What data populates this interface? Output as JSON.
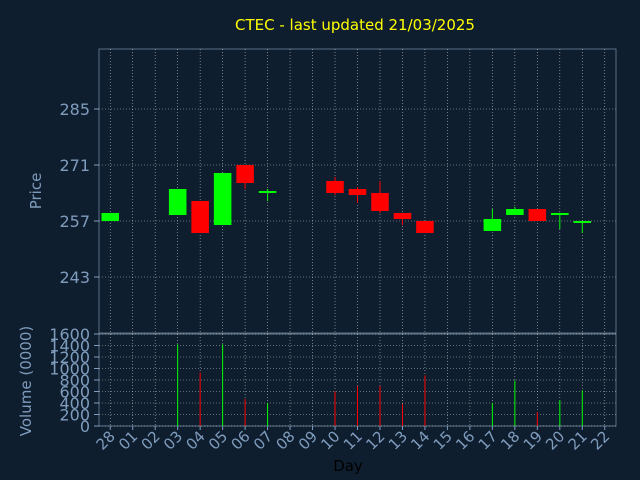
{
  "chart_data": {
    "type": "candlestick",
    "title": "CTEC - last updated 21/03/2025",
    "ylabel": "Price",
    "volume_ylabel": "Volume (0000)",
    "xlabel": "Day",
    "ylim": [
      229,
      300
    ],
    "yticks": [
      243,
      257,
      271,
      285
    ],
    "volume_ylim": [
      0,
      1600
    ],
    "volume_yticks": [
      0,
      200,
      400,
      600,
      800,
      1000,
      1200,
      1400,
      1600
    ],
    "grid": true,
    "colors": {
      "background": "#0f1e2e",
      "up": "#00ff00",
      "down": "#ff0000",
      "title": "#ffff00",
      "axis_text": "#7f9cbd",
      "xlabel": "#000000",
      "grid": "#ffffff"
    },
    "days": [
      "28",
      "01",
      "02",
      "03",
      "04",
      "05",
      "06",
      "07",
      "08",
      "09",
      "10",
      "11",
      "12",
      "13",
      "14",
      "15",
      "16",
      "17",
      "18",
      "19",
      "20",
      "21",
      "22"
    ],
    "candles": [
      {
        "day": "28",
        "open": 257,
        "high": 259,
        "low": 257,
        "close": 259,
        "volume": 0
      },
      {
        "day": "03",
        "open": 258.5,
        "high": 265,
        "low": 258.5,
        "close": 265,
        "volume": 1420
      },
      {
        "day": "04",
        "open": 262,
        "high": 262,
        "low": 254,
        "close": 254,
        "volume": 930
      },
      {
        "day": "05",
        "open": 256,
        "high": 269,
        "low": 256,
        "close": 269,
        "volume": 1420
      },
      {
        "day": "06",
        "open": 271,
        "high": 271,
        "low": 265,
        "close": 266.5,
        "volume": 470
      },
      {
        "day": "07",
        "open": 264,
        "high": 265,
        "low": 262,
        "close": 264.5,
        "volume": 400
      },
      {
        "day": "10",
        "open": 267,
        "high": 268,
        "low": 263.5,
        "close": 264,
        "volume": 600
      },
      {
        "day": "11",
        "open": 265,
        "high": 265.5,
        "low": 261.5,
        "close": 263.5,
        "volume": 700
      },
      {
        "day": "12",
        "open": 264,
        "high": 267,
        "low": 259,
        "close": 259.5,
        "volume": 700
      },
      {
        "day": "13",
        "open": 259,
        "high": 259,
        "low": 256,
        "close": 257.5,
        "volume": 380
      },
      {
        "day": "14",
        "open": 257,
        "high": 257,
        "low": 254,
        "close": 254,
        "volume": 880
      },
      {
        "day": "17",
        "open": 254.5,
        "high": 260,
        "low": 254.5,
        "close": 257.5,
        "volume": 400
      },
      {
        "day": "18",
        "open": 258.5,
        "high": 260.5,
        "low": 258.5,
        "close": 260,
        "volume": 790
      },
      {
        "day": "19",
        "open": 260,
        "high": 260,
        "low": 257,
        "close": 257,
        "volume": 240
      },
      {
        "day": "20",
        "open": 258.5,
        "high": 259,
        "low": 255,
        "close": 259,
        "volume": 450
      },
      {
        "day": "21",
        "open": 256.5,
        "high": 257,
        "low": 254,
        "close": 257,
        "volume": 620
      }
    ]
  }
}
